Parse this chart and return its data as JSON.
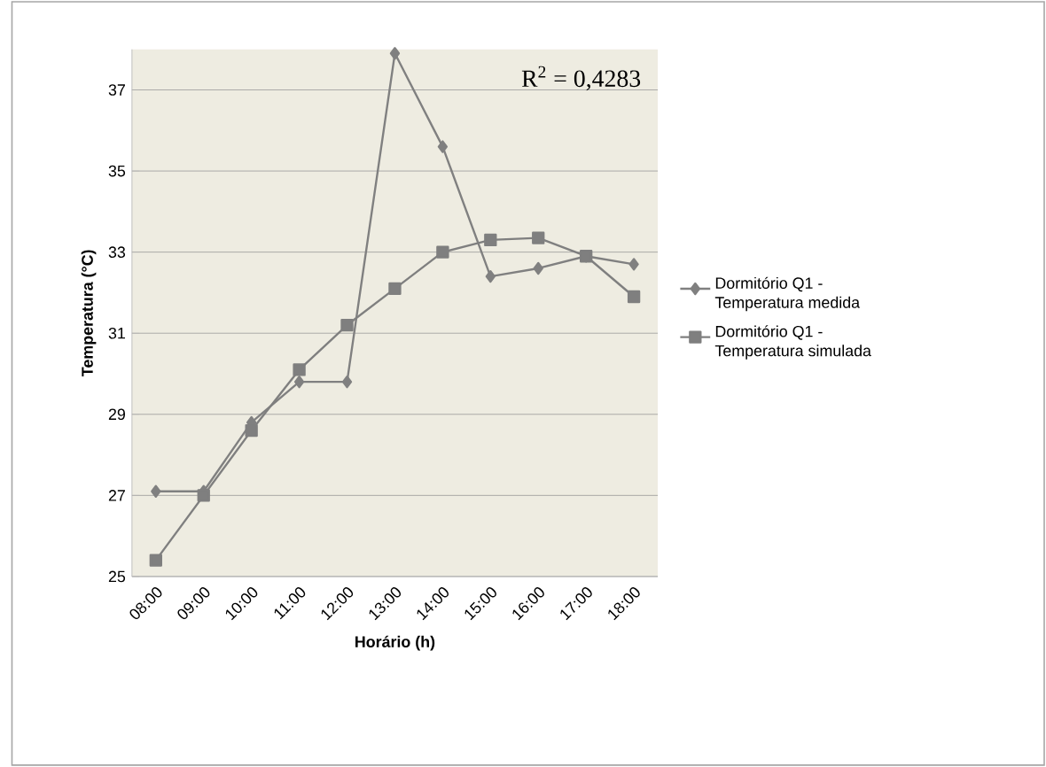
{
  "chart_data": {
    "type": "line",
    "categories": [
      "08:00",
      "09:00",
      "10:00",
      "11:00",
      "12:00",
      "13:00",
      "14:00",
      "15:00",
      "16:00",
      "17:00",
      "18:00"
    ],
    "xlabel": "Horário (h)",
    "ylabel": "Temperatura (°C)",
    "series": [
      {
        "name": "Dormitório Q1 - Temperatura medida",
        "color": "#808080",
        "marker": "diamond",
        "values": [
          27.1,
          27.1,
          28.8,
          29.8,
          29.8,
          37.9,
          35.6,
          32.4,
          32.6,
          32.9,
          32.7
        ]
      },
      {
        "name": "Dormitório Q1 - Temperatura simulada",
        "color": "#7f7f7f",
        "marker": "square",
        "values": [
          25.4,
          27.0,
          28.6,
          30.1,
          31.2,
          32.1,
          33.0,
          33.3,
          33.35,
          32.9,
          31.9
        ]
      }
    ],
    "ylim": [
      25,
      38
    ],
    "yticks": [
      25,
      27,
      29,
      31,
      33,
      35,
      37
    ],
    "grid": "y",
    "legend": "right",
    "line_style": "solid",
    "annotations": [
      "R$^{2}$ = 0,4283"
    ]
  }
}
